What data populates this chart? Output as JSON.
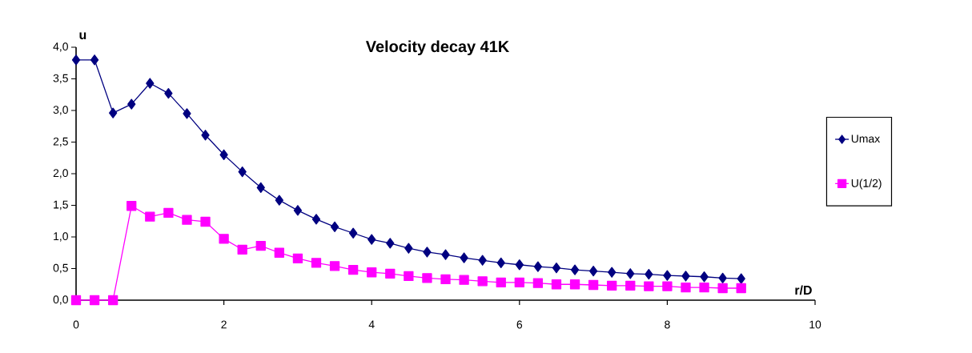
{
  "chart_data": {
    "type": "line",
    "title": "Velocity decay 41K",
    "xlabel": "r/D",
    "ylabel": "u",
    "x": [
      0,
      0.25,
      0.5,
      0.75,
      1,
      1.25,
      1.5,
      1.75,
      2,
      2.25,
      2.5,
      2.75,
      3,
      3.25,
      3.5,
      3.75,
      4,
      4.25,
      4.5,
      4.75,
      5,
      5.25,
      5.5,
      5.75,
      6,
      6.25,
      6.5,
      6.75,
      7,
      7.25,
      7.5,
      7.75,
      8,
      8.25,
      8.5,
      8.75,
      9
    ],
    "series": [
      {
        "name": "Umax",
        "color": "#000080",
        "marker": "diamond",
        "values": [
          3.8,
          3.8,
          2.96,
          3.1,
          3.43,
          3.27,
          2.95,
          2.61,
          2.3,
          2.03,
          1.78,
          1.58,
          1.42,
          1.28,
          1.16,
          1.06,
          0.96,
          0.9,
          0.82,
          0.76,
          0.72,
          0.67,
          0.63,
          0.59,
          0.56,
          0.53,
          0.51,
          0.48,
          0.46,
          0.44,
          0.42,
          0.41,
          0.39,
          0.38,
          0.37,
          0.35,
          0.34
        ]
      },
      {
        "name": "U(1/2)",
        "color": "#ff00ff",
        "marker": "square",
        "values": [
          0,
          0,
          0,
          1.49,
          1.32,
          1.38,
          1.27,
          1.24,
          0.97,
          0.8,
          0.86,
          0.75,
          0.66,
          0.59,
          0.54,
          0.48,
          0.44,
          0.42,
          0.38,
          0.35,
          0.33,
          0.32,
          0.3,
          0.28,
          0.28,
          0.27,
          0.25,
          0.25,
          0.24,
          0.23,
          0.23,
          0.22,
          0.22,
          0.2,
          0.2,
          0.19,
          0.19
        ]
      }
    ],
    "xlim": [
      0,
      10
    ],
    "xticks": [
      0,
      2,
      4,
      6,
      8,
      10
    ],
    "ylim": [
      0,
      4
    ],
    "yticks": [
      {
        "value": 0,
        "label": "0,0"
      },
      {
        "value": 0.5,
        "label": "0,5"
      },
      {
        "value": 1,
        "label": "1,0"
      },
      {
        "value": 1.5,
        "label": "1,5"
      },
      {
        "value": 2,
        "label": "2,0"
      },
      {
        "value": 2.5,
        "label": "2,5"
      },
      {
        "value": 3,
        "label": "3,0"
      },
      {
        "value": 3.5,
        "label": "3,5"
      },
      {
        "value": 4,
        "label": "4,0"
      }
    ],
    "grid": false,
    "legend": "right",
    "line_style": "solid"
  }
}
